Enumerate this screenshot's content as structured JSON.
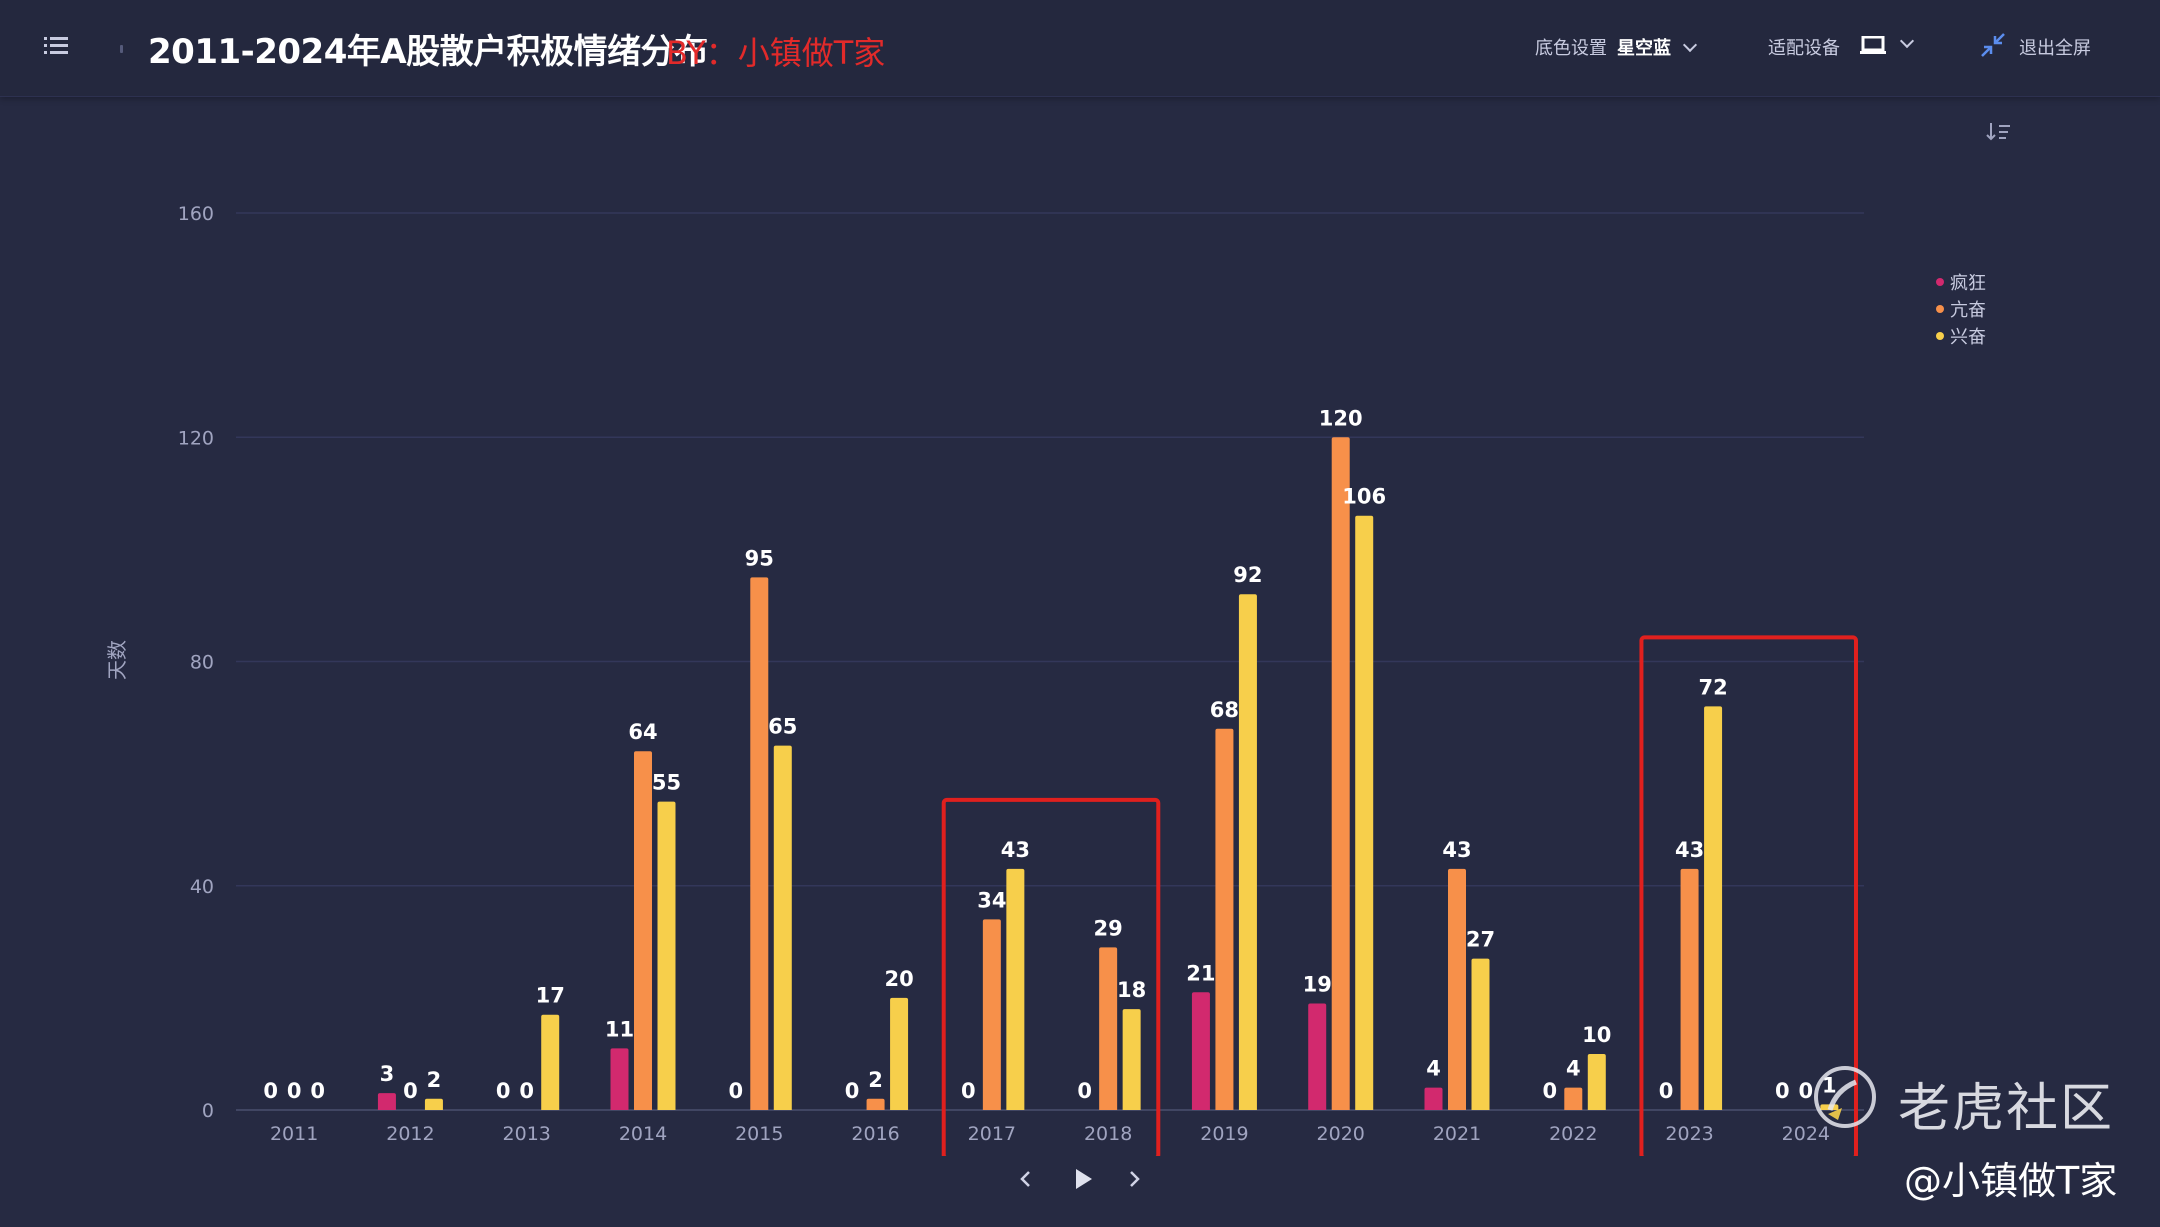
{
  "header": {
    "title": "2011-2024年A股散户积极情绪分布",
    "author": "BY：小镇做T家",
    "bg_setting_label": "底色设置",
    "bg_setting_value": "星空蓝",
    "device_label": "适配设备",
    "exit_label": "退出全屏"
  },
  "watermark": {
    "brand": "老虎社区",
    "handle": "@小镇做T家"
  },
  "colors": {
    "background": "#262a42",
    "fengkuang": "#d2296e",
    "kangfen": "#f7904a",
    "xingfen": "#f7cf4b",
    "highlight_box": "#e0201e"
  },
  "chart_data": {
    "type": "bar",
    "categories": [
      "2011",
      "2012",
      "2013",
      "2014",
      "2015",
      "2016",
      "2017",
      "2018",
      "2019",
      "2020",
      "2021",
      "2022",
      "2023",
      "2024"
    ],
    "series": [
      {
        "name": "疯狂",
        "color": "#d2296e",
        "values": [
          0,
          3,
          0,
          11,
          0,
          0,
          0,
          0,
          21,
          19,
          4,
          0,
          0,
          0
        ]
      },
      {
        "name": "亢奋",
        "color": "#f7904a",
        "values": [
          0,
          0,
          0,
          64,
          95,
          2,
          34,
          29,
          68,
          120,
          43,
          4,
          43,
          0
        ]
      },
      {
        "name": "兴奋",
        "color": "#f7cf4b",
        "values": [
          0,
          2,
          17,
          55,
          65,
          20,
          43,
          18,
          92,
          106,
          27,
          10,
          72,
          1
        ]
      }
    ],
    "ylabel": "天数",
    "yticks": [
      0,
      40,
      80,
      120,
      160
    ],
    "ylim": [
      0,
      160
    ],
    "grid": true,
    "legend_position": "right-top",
    "highlighted_ranges": [
      [
        "2017",
        "2018"
      ],
      [
        "2023",
        "2024"
      ]
    ]
  }
}
